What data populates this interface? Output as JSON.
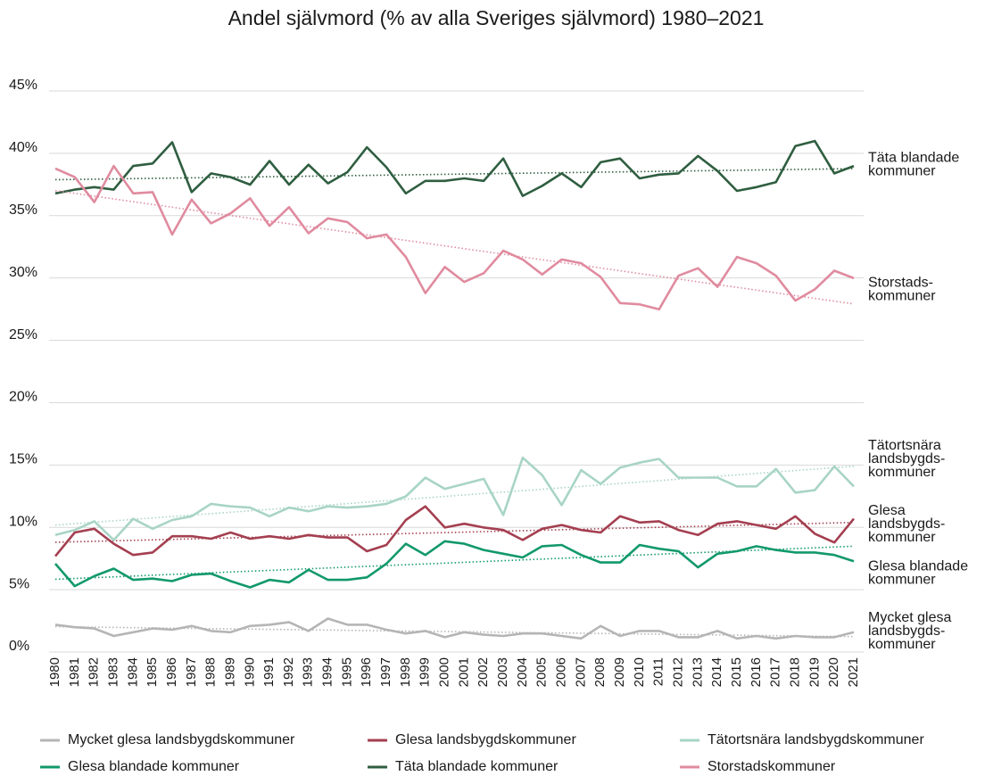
{
  "chart_data": {
    "type": "line",
    "title": "Andel självmord (% av alla Sveriges självmord) 1980–2021",
    "categories": [
      "1980",
      "1981",
      "1982",
      "1983",
      "1984",
      "1985",
      "1986",
      "1987",
      "1988",
      "1989",
      "1990",
      "1991",
      "1992",
      "1993",
      "1994",
      "1995",
      "1996",
      "1997",
      "1998",
      "1999",
      "2000",
      "2001",
      "2002",
      "2003",
      "2004",
      "2005",
      "2006",
      "2007",
      "2008",
      "2009",
      "2010",
      "2011",
      "2012",
      "2013",
      "2014",
      "2015",
      "2016",
      "2017",
      "2018",
      "2019",
      "2020",
      "2021"
    ],
    "ylim": [
      0,
      45
    ],
    "yticks": [
      {
        "value": 0,
        "label": "0%"
      },
      {
        "value": 5,
        "label": "5%"
      },
      {
        "value": 10,
        "label": "10%"
      },
      {
        "value": 15,
        "label": "15%"
      },
      {
        "value": 20,
        "label": "20%"
      },
      {
        "value": 25,
        "label": "25%"
      },
      {
        "value": 30,
        "label": "30%"
      },
      {
        "value": 35,
        "label": "35%"
      },
      {
        "value": 40,
        "label": "40%"
      },
      {
        "value": 45,
        "label": "45%"
      }
    ],
    "grid": true,
    "trendlines": true,
    "legend": "bottom",
    "series": [
      {
        "name": "Mycket glesa landsbygdskommuner",
        "color": "#b5b5b5",
        "end_label": [
          "Mycket glesa",
          "landsbygds-",
          "kommuner"
        ],
        "values": [
          1.9,
          1.7,
          1.6,
          1.0,
          1.3,
          1.6,
          1.5,
          1.8,
          1.4,
          1.3,
          1.8,
          1.9,
          2.1,
          1.4,
          2.4,
          1.9,
          1.9,
          1.5,
          1.2,
          1.4,
          0.9,
          1.3,
          1.1,
          1.0,
          1.2,
          1.2,
          1.0,
          0.8,
          1.8,
          1.0,
          1.4,
          1.4,
          0.9,
          0.9,
          1.4,
          0.8,
          1.0,
          0.8,
          1.0,
          0.9,
          0.9,
          1.3
        ]
      },
      {
        "name": "Glesa landsbygdskommuner",
        "color": "#a43f50",
        "end_label": [
          "Glesa",
          "landsbygds-",
          "kommuner"
        ],
        "values": [
          7.4,
          9.3,
          9.6,
          8.4,
          7.5,
          7.7,
          9.0,
          9.0,
          8.8,
          9.3,
          8.8,
          9.0,
          8.8,
          9.1,
          8.9,
          8.9,
          7.8,
          8.3,
          10.3,
          11.4,
          9.7,
          10.0,
          9.7,
          9.5,
          8.7,
          9.6,
          9.9,
          9.5,
          9.3,
          10.6,
          10.1,
          10.2,
          9.5,
          9.1,
          10.0,
          10.2,
          9.9,
          9.6,
          10.6,
          9.2,
          8.5,
          10.4
        ]
      },
      {
        "name": "Tätortsnära landsbygdskommuner",
        "color": "#a8d4c6",
        "end_label": [
          "Tätortsnära",
          "landsbygds-",
          "kommuner"
        ],
        "values": [
          9.1,
          9.5,
          10.2,
          8.7,
          10.4,
          9.6,
          10.3,
          10.6,
          11.6,
          11.4,
          11.3,
          10.6,
          11.3,
          11.0,
          11.4,
          11.3,
          11.4,
          11.6,
          12.2,
          13.7,
          12.8,
          13.2,
          13.6,
          10.7,
          15.3,
          13.9,
          11.5,
          14.3,
          13.2,
          14.5,
          14.9,
          15.2,
          13.7,
          13.7,
          13.7,
          13.0,
          13.0,
          14.4,
          12.5,
          12.7,
          14.6,
          13.0
        ]
      },
      {
        "name": "Glesa blandade kommuner",
        "color": "#12996a",
        "end_label": [
          "Glesa blandade",
          "kommuner"
        ],
        "values": [
          6.8,
          5.0,
          5.8,
          6.4,
          5.5,
          5.6,
          5.4,
          5.9,
          6.0,
          5.4,
          4.9,
          5.5,
          5.3,
          6.3,
          5.5,
          5.5,
          5.7,
          6.8,
          8.4,
          7.5,
          8.6,
          8.4,
          7.9,
          7.6,
          7.3,
          8.2,
          8.3,
          7.5,
          6.9,
          6.9,
          8.3,
          8.0,
          7.8,
          6.5,
          7.6,
          7.8,
          8.2,
          7.9,
          7.7,
          7.7,
          7.5,
          7.0
        ]
      },
      {
        "name": "Täta blandade kommuner",
        "color": "#2f5e40",
        "end_label": [
          "Täta blandade",
          "kommuner"
        ],
        "values": [
          36.5,
          36.8,
          37.0,
          36.8,
          38.7,
          38.9,
          40.6,
          36.6,
          38.1,
          37.8,
          37.2,
          39.1,
          37.2,
          38.8,
          37.3,
          38.2,
          40.2,
          38.6,
          36.5,
          37.5,
          37.5,
          37.7,
          37.5,
          39.3,
          36.3,
          37.1,
          38.1,
          37.0,
          39.0,
          39.3,
          37.7,
          38.0,
          38.1,
          39.5,
          38.3,
          36.7,
          37.0,
          37.4,
          40.3,
          40.7,
          38.1,
          38.7
        ]
      },
      {
        "name": "Storstadskommuner",
        "color": "#e08b9f",
        "end_label": [
          "Storstads-",
          "kommuner"
        ],
        "values": [
          38.5,
          37.8,
          35.8,
          38.7,
          36.5,
          36.6,
          33.2,
          36.0,
          34.1,
          34.9,
          36.1,
          33.9,
          35.4,
          33.3,
          34.5,
          34.2,
          32.9,
          33.2,
          31.4,
          28.5,
          30.6,
          29.4,
          30.1,
          31.9,
          31.2,
          30.0,
          31.2,
          30.9,
          29.8,
          27.7,
          27.6,
          27.2,
          29.9,
          30.5,
          29.0,
          31.4,
          30.9,
          29.9,
          27.9,
          28.8,
          30.3,
          29.7
        ]
      }
    ]
  }
}
